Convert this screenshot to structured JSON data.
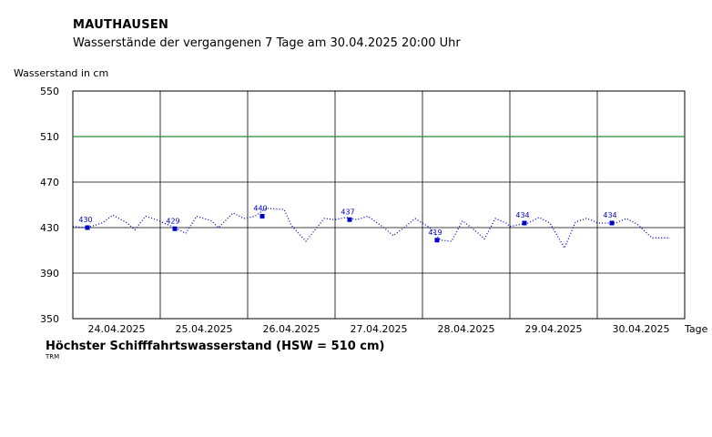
{
  "header": {
    "station": "MAUTHAUSEN",
    "subtitle": "Wasserstände der vergangenen 7 Tage am 30.04.2025 20:00 Uhr"
  },
  "legend": {
    "hsw_label": "Höchster Schifffahrtswasserstand (HSW = 510 cm)",
    "source": "TRM"
  },
  "colors": {
    "series": "#0000cc",
    "hsw_line": "#2e8b2e",
    "grid": "#000000"
  },
  "chart_data": {
    "type": "line",
    "title": "Wasserstände der vergangenen 7 Tage am 30.04.2025 20:00 Uhr",
    "ylabel": "Wasserstand in cm",
    "xlabel": "Tage",
    "ylim": [
      350,
      550
    ],
    "yticks": [
      350,
      390,
      430,
      470,
      510,
      550
    ],
    "xlim_days": [
      0,
      7
    ],
    "day_labels": [
      "24.04.2025",
      "25.04.2025",
      "26.04.2025",
      "27.04.2025",
      "28.04.2025",
      "29.04.2025",
      "30.04.2025"
    ],
    "hsw": 510,
    "grid": true,
    "line_style": "dotted",
    "series": [
      {
        "points": [
          [
            "24.04.2025 00:00",
            431
          ],
          [
            "24.04.2025 04:00",
            430
          ],
          [
            "24.04.2025 08:00",
            434
          ],
          [
            "24.04.2025 11:00",
            441
          ],
          [
            "24.04.2025 15:00",
            434
          ],
          [
            "24.04.2025 17:00",
            428
          ],
          [
            "24.04.2025 20:00",
            440
          ],
          [
            "24.04.2025 23:00",
            437
          ],
          [
            "25.04.2025 01:00",
            434
          ],
          [
            "25.04.2025 04:00",
            430
          ],
          [
            "25.04.2025 07:00",
            425
          ],
          [
            "25.04.2025 10:00",
            440
          ],
          [
            "25.04.2025 14:00",
            436
          ],
          [
            "25.04.2025 16:00",
            430
          ],
          [
            "25.04.2025 20:00",
            443
          ],
          [
            "25.04.2025 23:00",
            438
          ],
          [
            "26.04.2025 02:00",
            440
          ],
          [
            "26.04.2025 05:00",
            447
          ],
          [
            "26.04.2025 10:00",
            446
          ],
          [
            "26.04.2025 12:00",
            432
          ],
          [
            "26.04.2025 16:00",
            418
          ],
          [
            "26.04.2025 19:00",
            430
          ],
          [
            "26.04.2025 21:00",
            438
          ],
          [
            "27.04.2025 00:00",
            437
          ],
          [
            "27.04.2025 03:00",
            439
          ],
          [
            "27.04.2025 06:00",
            437
          ],
          [
            "27.04.2025 09:00",
            440
          ],
          [
            "27.04.2025 13:00",
            431
          ],
          [
            "27.04.2025 16:00",
            423
          ],
          [
            "27.04.2025 19:00",
            430
          ],
          [
            "27.04.2025 22:00",
            438
          ],
          [
            "28.04.2025 02:00",
            430
          ],
          [
            "28.04.2025 05:00",
            419
          ],
          [
            "28.04.2025 08:00",
            418
          ],
          [
            "28.04.2025 11:00",
            436
          ],
          [
            "28.04.2025 15:00",
            426
          ],
          [
            "28.04.2025 17:00",
            420
          ],
          [
            "28.04.2025 20:00",
            438
          ],
          [
            "28.04.2025 23:00",
            434
          ],
          [
            "29.04.2025 00:00",
            431
          ],
          [
            "29.04.2025 03:00",
            433
          ],
          [
            "29.04.2025 05:00",
            434
          ],
          [
            "29.04.2025 08:00",
            439
          ],
          [
            "29.04.2025 11:00",
            434
          ],
          [
            "29.04.2025 15:00",
            412
          ],
          [
            "29.04.2025 18:00",
            435
          ],
          [
            "29.04.2025 21:00",
            438
          ],
          [
            "29.04.2025 23:00",
            436
          ],
          [
            "30.04.2025 00:00",
            434
          ],
          [
            "30.04.2025 03:00",
            434
          ],
          [
            "30.04.2025 05:00",
            434
          ],
          [
            "30.04.2025 08:00",
            438
          ],
          [
            "30.04.2025 11:00",
            433
          ],
          [
            "30.04.2025 15:00",
            421
          ],
          [
            "30.04.2025 20:00",
            421
          ]
        ]
      }
    ],
    "daily_markers": [
      {
        "time": "24.04.2025 04:00",
        "value": 430
      },
      {
        "time": "25.04.2025 04:00",
        "value": 429
      },
      {
        "time": "26.04.2025 04:00",
        "value": 440
      },
      {
        "time": "27.04.2025 04:00",
        "value": 437
      },
      {
        "time": "28.04.2025 04:00",
        "value": 419
      },
      {
        "time": "29.04.2025 04:00",
        "value": 434
      },
      {
        "time": "30.04.2025 04:00",
        "value": 434
      }
    ]
  }
}
